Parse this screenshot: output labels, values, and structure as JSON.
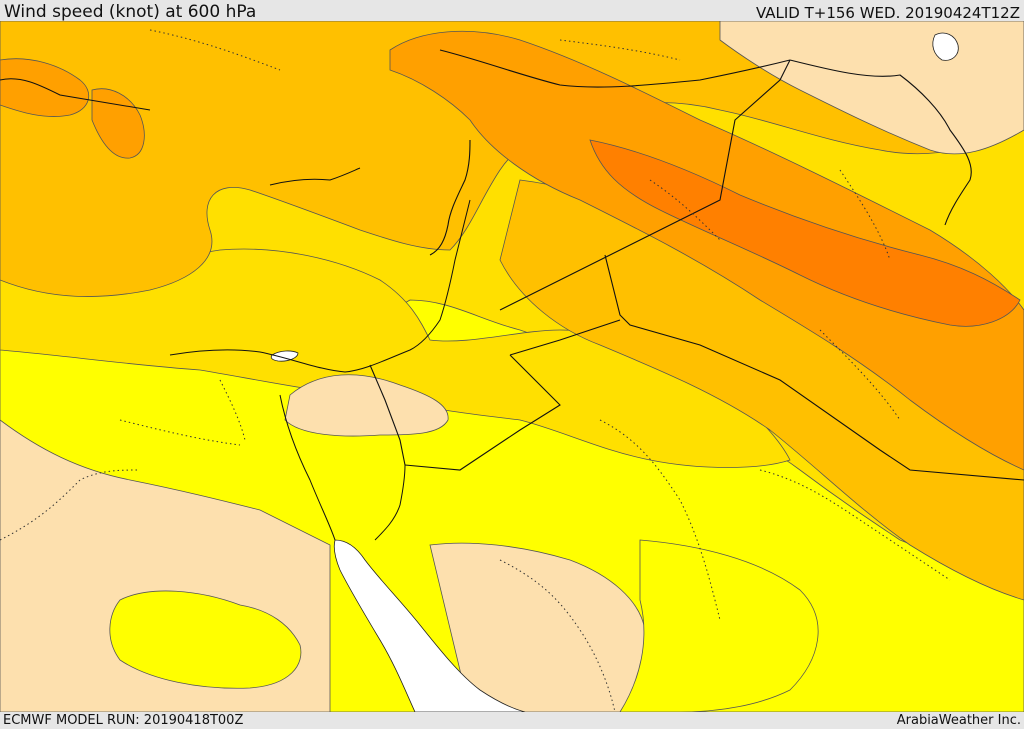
{
  "header": {
    "title": "Wind speed (knot) at 600 hPa",
    "valid": "VALID T+156 WED. 20190424T12Z"
  },
  "footer": {
    "model_run": "ECMWF MODEL RUN: 20190418T00Z",
    "credit": "ArabiaWeather Inc."
  },
  "colors": {
    "land_light": "#fde0ae",
    "yellow": "#ffff00",
    "gold": "#ffe000",
    "amber": "#ffc000",
    "orange": "#ffa000",
    "deep_orange": "#ff8000",
    "sea": "#ffffff"
  }
}
